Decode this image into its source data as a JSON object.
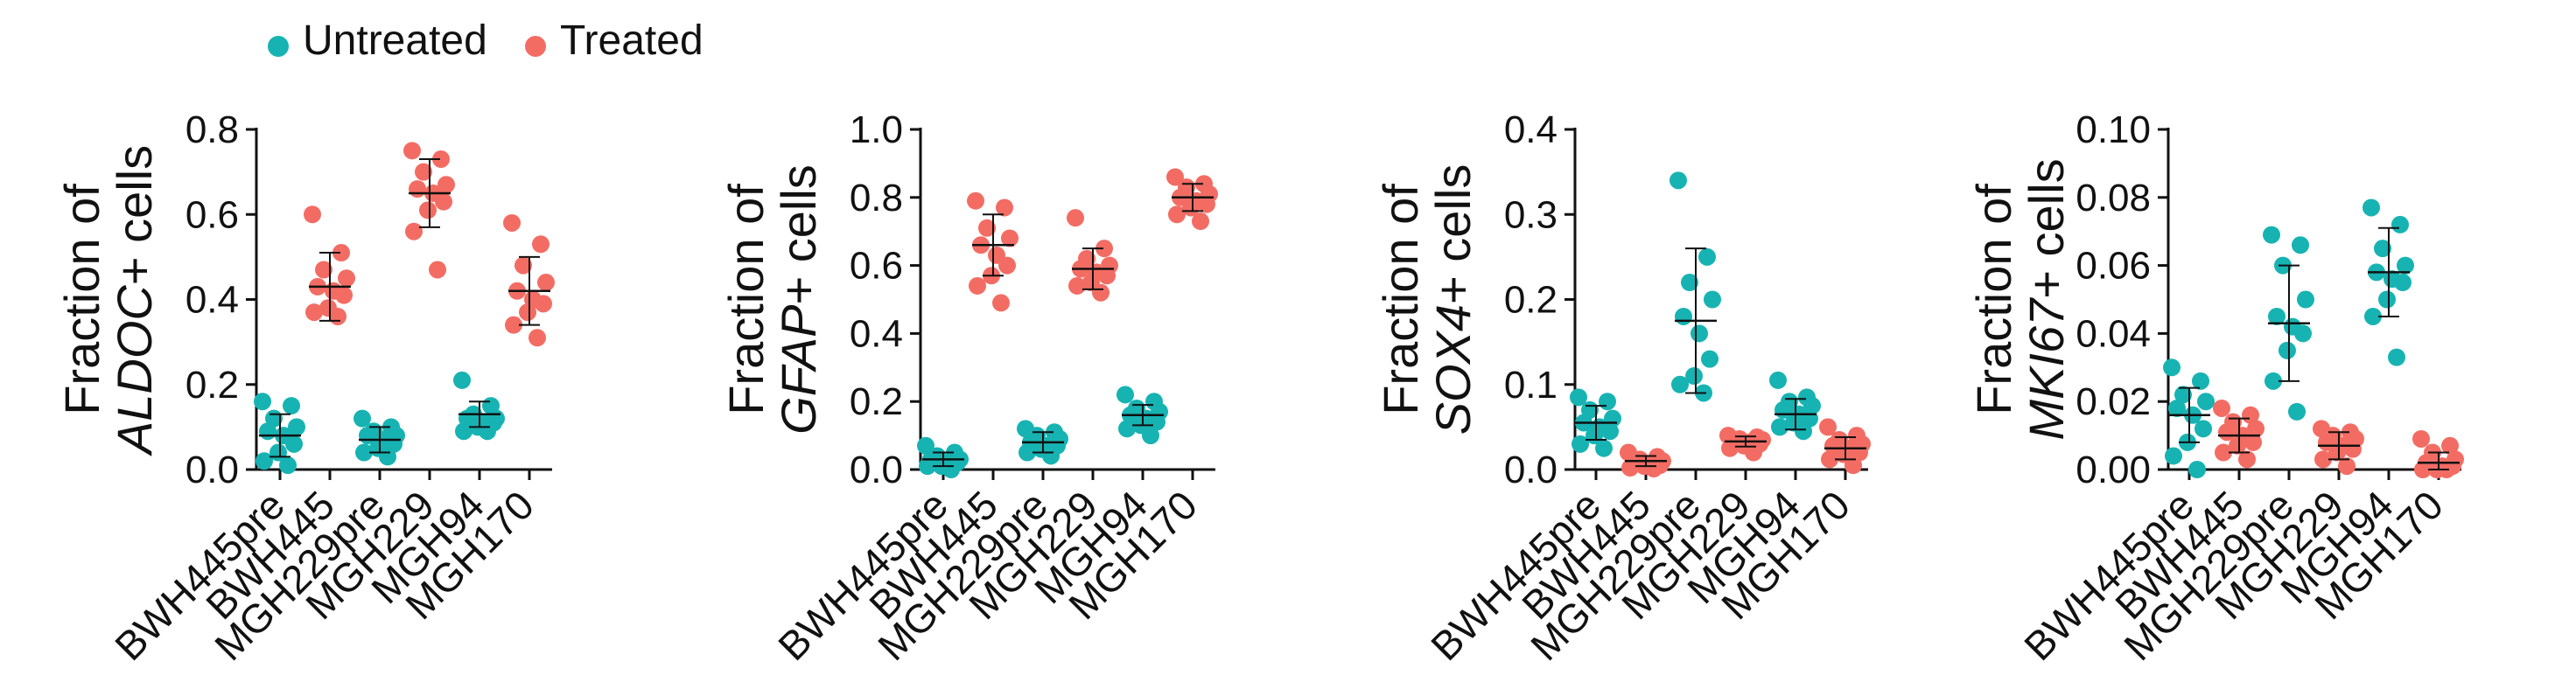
{
  "legend": [
    {
      "label": "Untreated",
      "color": "#17b3b3"
    },
    {
      "label": "Treated",
      "color": "#f36c63"
    }
  ],
  "chart_data": [
    {
      "type": "scatter",
      "subtype": "dot-plot",
      "ylabel_prefix": "Fraction of",
      "ylabel_gene": "ALDOC",
      "ylabel_suffix": "+ cells",
      "ylim": [
        0,
        0.8
      ],
      "yticks": [
        "0.0",
        "0.2",
        "0.4",
        "0.6",
        "0.8"
      ],
      "categories": [
        "BWH445pre",
        "BWH445",
        "MGH229pre",
        "MGH229",
        "MGH94",
        "MGH170"
      ],
      "groups": [
        "Untreated",
        "Treated",
        "Untreated",
        "Treated",
        "Untreated",
        "Treated"
      ],
      "points": [
        [
          0.16,
          0.15,
          0.12,
          0.1,
          0.09,
          0.08,
          0.06,
          0.04,
          0.02,
          0.01
        ],
        [
          0.6,
          0.51,
          0.47,
          0.45,
          0.43,
          0.42,
          0.41,
          0.38,
          0.37,
          0.36
        ],
        [
          0.12,
          0.1,
          0.09,
          0.08,
          0.08,
          0.07,
          0.06,
          0.05,
          0.04,
          0.03
        ],
        [
          0.75,
          0.73,
          0.7,
          0.67,
          0.66,
          0.65,
          0.63,
          0.61,
          0.56,
          0.47
        ],
        [
          0.21,
          0.15,
          0.13,
          0.12,
          0.12,
          0.11,
          0.11,
          0.1,
          0.09,
          0.09
        ],
        [
          0.58,
          0.53,
          0.48,
          0.44,
          0.42,
          0.4,
          0.39,
          0.37,
          0.34,
          0.31
        ]
      ],
      "mean": [
        0.08,
        0.43,
        0.07,
        0.65,
        0.13,
        0.42
      ],
      "sd": [
        0.05,
        0.08,
        0.03,
        0.08,
        0.03,
        0.08
      ]
    },
    {
      "type": "scatter",
      "subtype": "dot-plot",
      "ylabel_prefix": "Fraction of",
      "ylabel_gene": "GFAP",
      "ylabel_suffix": "+ cells",
      "ylim": [
        0,
        1.0
      ],
      "yticks": [
        "0.0",
        "0.2",
        "0.4",
        "0.6",
        "0.8",
        "1.0"
      ],
      "categories": [
        "BWH445pre",
        "BWH445",
        "MGH229pre",
        "MGH229",
        "MGH94",
        "MGH170"
      ],
      "groups": [
        "Untreated",
        "Treated",
        "Untreated",
        "Treated",
        "Untreated",
        "Treated"
      ],
      "points": [
        [
          0.07,
          0.05,
          0.04,
          0.03,
          0.03,
          0.02,
          0.02,
          0.01,
          0.01,
          0.0
        ],
        [
          0.79,
          0.77,
          0.71,
          0.68,
          0.66,
          0.63,
          0.6,
          0.57,
          0.54,
          0.49
        ],
        [
          0.12,
          0.11,
          0.1,
          0.09,
          0.08,
          0.07,
          0.07,
          0.06,
          0.05,
          0.04
        ],
        [
          0.74,
          0.65,
          0.62,
          0.6,
          0.59,
          0.58,
          0.57,
          0.55,
          0.54,
          0.52
        ],
        [
          0.22,
          0.2,
          0.18,
          0.17,
          0.16,
          0.15,
          0.14,
          0.13,
          0.12,
          0.1
        ],
        [
          0.86,
          0.84,
          0.83,
          0.81,
          0.8,
          0.79,
          0.78,
          0.77,
          0.75,
          0.73
        ]
      ],
      "mean": [
        0.03,
        0.66,
        0.08,
        0.59,
        0.16,
        0.8
      ],
      "sd": [
        0.02,
        0.09,
        0.03,
        0.06,
        0.03,
        0.04
      ]
    },
    {
      "type": "scatter",
      "subtype": "dot-plot",
      "ylabel_prefix": "Fraction of",
      "ylabel_gene": "SOX4",
      "ylabel_suffix": "+ cells",
      "ylim": [
        0,
        0.4
      ],
      "yticks": [
        "0.0",
        "0.1",
        "0.2",
        "0.3",
        "0.4"
      ],
      "categories": [
        "BWH445pre",
        "BWH445",
        "MGH229pre",
        "MGH229",
        "MGH94",
        "MGH170"
      ],
      "groups": [
        "Untreated",
        "Treated",
        "Untreated",
        "Treated",
        "Untreated",
        "Treated"
      ],
      "points": [
        [
          0.085,
          0.08,
          0.07,
          0.06,
          0.055,
          0.05,
          0.045,
          0.04,
          0.03,
          0.025
        ],
        [
          0.02,
          0.015,
          0.012,
          0.01,
          0.008,
          0.006,
          0.005,
          0.004,
          0.002,
          0.001
        ],
        [
          0.34,
          0.25,
          0.22,
          0.2,
          0.18,
          0.16,
          0.13,
          0.11,
          0.1,
          0.09
        ],
        [
          0.04,
          0.038,
          0.036,
          0.035,
          0.033,
          0.032,
          0.03,
          0.028,
          0.025,
          0.02
        ],
        [
          0.105,
          0.085,
          0.08,
          0.075,
          0.07,
          0.065,
          0.06,
          0.055,
          0.05,
          0.045
        ],
        [
          0.05,
          0.04,
          0.035,
          0.03,
          0.028,
          0.025,
          0.02,
          0.018,
          0.012,
          0.005
        ]
      ],
      "mean": [
        0.055,
        0.01,
        0.175,
        0.033,
        0.065,
        0.025
      ],
      "sd": [
        0.02,
        0.006,
        0.085,
        0.006,
        0.018,
        0.013
      ]
    },
    {
      "type": "scatter",
      "subtype": "dot-plot",
      "ylabel_prefix": "Fraction of",
      "ylabel_gene": "MKI67",
      "ylabel_suffix": "+ cells",
      "ylim": [
        0,
        0.1
      ],
      "yticks": [
        "0.00",
        "0.02",
        "0.04",
        "0.06",
        "0.08",
        "0.10"
      ],
      "categories": [
        "BWH445pre",
        "BWH445",
        "MGH229pre",
        "MGH229",
        "MGH94",
        "MGH170"
      ],
      "groups": [
        "Untreated",
        "Treated",
        "Untreated",
        "Treated",
        "Untreated",
        "Treated"
      ],
      "points": [
        [
          0.03,
          0.026,
          0.022,
          0.02,
          0.018,
          0.016,
          0.012,
          0.008,
          0.004,
          0.0
        ],
        [
          0.018,
          0.016,
          0.014,
          0.012,
          0.011,
          0.01,
          0.008,
          0.007,
          0.005,
          0.003
        ],
        [
          0.069,
          0.066,
          0.06,
          0.05,
          0.045,
          0.042,
          0.04,
          0.035,
          0.026,
          0.017
        ],
        [
          0.012,
          0.011,
          0.01,
          0.009,
          0.008,
          0.007,
          0.006,
          0.005,
          0.003,
          0.001
        ],
        [
          0.077,
          0.072,
          0.065,
          0.06,
          0.058,
          0.056,
          0.055,
          0.05,
          0.045,
          0.033
        ],
        [
          0.009,
          0.007,
          0.005,
          0.003,
          0.002,
          0.001,
          0.001,
          0.0,
          0.0,
          0.0
        ]
      ],
      "mean": [
        0.016,
        0.01,
        0.043,
        0.007,
        0.058,
        0.002
      ],
      "sd": [
        0.008,
        0.005,
        0.017,
        0.004,
        0.013,
        0.003
      ]
    }
  ]
}
